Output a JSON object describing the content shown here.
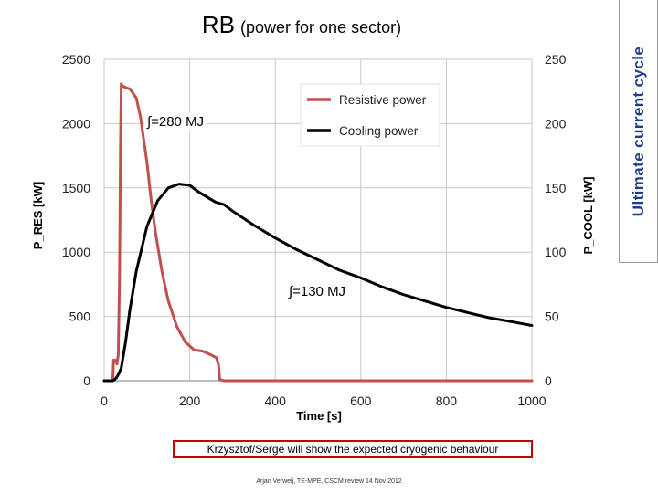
{
  "title": {
    "main": "RB",
    "sub": "(power for one sector)"
  },
  "side_label": "Ultimate current cycle",
  "annotations": {
    "integral_res": "∫=280 MJ",
    "integral_cool": "∫=130 MJ"
  },
  "note": "Krzysztof/Serge will show the expected cryogenic behaviour",
  "footer": "Arjan Verweij, TE-MPE, CSCM review 14 Nov 2012",
  "chart_data": {
    "type": "line",
    "title": "",
    "xlabel": "Time [s]",
    "ylabel": "P_RES [kW]",
    "y2label": "P_COOL [kW]",
    "xlim": [
      0,
      1000
    ],
    "ylim": [
      0,
      2500
    ],
    "y2lim": [
      0,
      250
    ],
    "x_ticks": [
      "0",
      "200",
      "400",
      "600",
      "800",
      "1000"
    ],
    "y_ticks": [
      "0",
      "500",
      "1000",
      "1500",
      "2000",
      "2500"
    ],
    "y2_ticks": [
      "0",
      "50",
      "100",
      "150",
      "200",
      "250"
    ],
    "grid": true,
    "legend_position": "top-right",
    "series": [
      {
        "name": "Resistive power",
        "axis": "left",
        "color": "#c0504d",
        "x": [
          0,
          20,
          22,
          26,
          30,
          33,
          36,
          38,
          40,
          42,
          46,
          50,
          60,
          75,
          85,
          100,
          110,
          120,
          135,
          150,
          170,
          190,
          210,
          230,
          250,
          262,
          267,
          270,
          280,
          1000
        ],
        "y": [
          0,
          0,
          160,
          160,
          130,
          200,
          800,
          1800,
          2310,
          2290,
          2290,
          2280,
          2270,
          2200,
          2050,
          1700,
          1400,
          1150,
          850,
          620,
          420,
          300,
          240,
          230,
          200,
          180,
          130,
          10,
          0,
          0
        ]
      },
      {
        "name": "Cooling power",
        "axis": "right",
        "color": "#000000",
        "x": [
          0,
          20,
          25,
          30,
          35,
          40,
          50,
          60,
          75,
          100,
          125,
          150,
          175,
          200,
          220,
          240,
          260,
          270,
          280,
          300,
          350,
          400,
          450,
          500,
          550,
          600,
          650,
          700,
          750,
          800,
          850,
          900,
          950,
          1000
        ],
        "y": [
          0,
          0,
          1,
          3,
          6,
          10,
          30,
          55,
          85,
          120,
          140,
          150,
          153,
          152,
          147,
          143,
          139,
          138,
          137,
          132,
          121,
          111,
          102,
          94,
          86,
          80,
          73,
          67,
          62,
          57,
          53,
          49,
          46,
          43
        ]
      }
    ]
  }
}
